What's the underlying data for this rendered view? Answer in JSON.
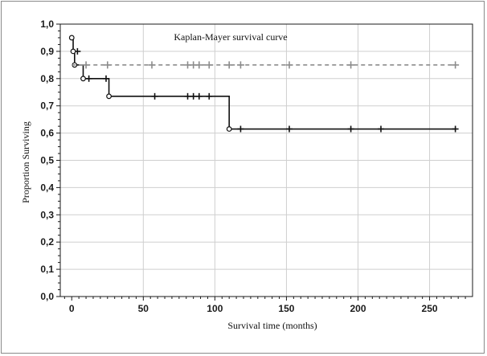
{
  "chart_data": {
    "type": "line",
    "title": "Kaplan-Mayer survival curve",
    "xlabel": "Survival time (months)",
    "ylabel": "Proportion Surviving",
    "xlim": [
      -8,
      280
    ],
    "ylim": [
      0,
      1.0
    ],
    "x_ticks": [
      0,
      50,
      100,
      150,
      200,
      250
    ],
    "x_tick_labels": [
      "0",
      "50",
      "100",
      "150",
      "200",
      "250"
    ],
    "y_ticks": [
      0,
      0.1,
      0.2,
      0.3,
      0.4,
      0.5,
      0.6,
      0.7,
      0.8,
      0.9,
      1.0
    ],
    "y_tick_labels": [
      "0,0",
      "0,1",
      "0,2",
      "0,3",
      "0,4",
      "0,5",
      "0,6",
      "0,7",
      "0,8",
      "0,9",
      "1,0"
    ],
    "grid": true,
    "series": [
      {
        "style": "solid",
        "color": "#111111",
        "steps": [
          {
            "x": 0,
            "y": 0.95
          },
          {
            "x": 1,
            "y": 0.9
          },
          {
            "x": 2,
            "y": 0.85
          },
          {
            "x": 8,
            "y": 0.8
          },
          {
            "x": 26,
            "y": 0.735
          },
          {
            "x": 110,
            "y": 0.615
          },
          {
            "x": 268,
            "y": 0.615
          }
        ],
        "events": [
          {
            "x": 0,
            "y": 0.95
          },
          {
            "x": 1,
            "y": 0.9
          },
          {
            "x": 2,
            "y": 0.85
          },
          {
            "x": 8,
            "y": 0.8
          },
          {
            "x": 26,
            "y": 0.735
          },
          {
            "x": 110,
            "y": 0.615
          }
        ],
        "censored": [
          {
            "x": 4,
            "y": 0.9
          },
          {
            "x": 12,
            "y": 0.8
          },
          {
            "x": 24,
            "y": 0.8
          },
          {
            "x": 58,
            "y": 0.735
          },
          {
            "x": 81,
            "y": 0.735
          },
          {
            "x": 85,
            "y": 0.735
          },
          {
            "x": 89,
            "y": 0.735
          },
          {
            "x": 96,
            "y": 0.735
          },
          {
            "x": 118,
            "y": 0.615
          },
          {
            "x": 152,
            "y": 0.615
          },
          {
            "x": 195,
            "y": 0.615
          },
          {
            "x": 216,
            "y": 0.615
          },
          {
            "x": 268,
            "y": 0.615
          }
        ]
      },
      {
        "style": "dashed",
        "color": "#8c8c8c",
        "steps": [
          {
            "x": 0,
            "y": 0.85
          },
          {
            "x": 268,
            "y": 0.85
          }
        ],
        "censored": [
          {
            "x": 10,
            "y": 0.85
          },
          {
            "x": 25,
            "y": 0.85
          },
          {
            "x": 56,
            "y": 0.85
          },
          {
            "x": 81,
            "y": 0.85
          },
          {
            "x": 85,
            "y": 0.85
          },
          {
            "x": 89,
            "y": 0.85
          },
          {
            "x": 96,
            "y": 0.85
          },
          {
            "x": 110,
            "y": 0.85
          },
          {
            "x": 118,
            "y": 0.85
          },
          {
            "x": 152,
            "y": 0.85
          },
          {
            "x": 195,
            "y": 0.85
          },
          {
            "x": 268,
            "y": 0.85
          }
        ]
      }
    ]
  }
}
